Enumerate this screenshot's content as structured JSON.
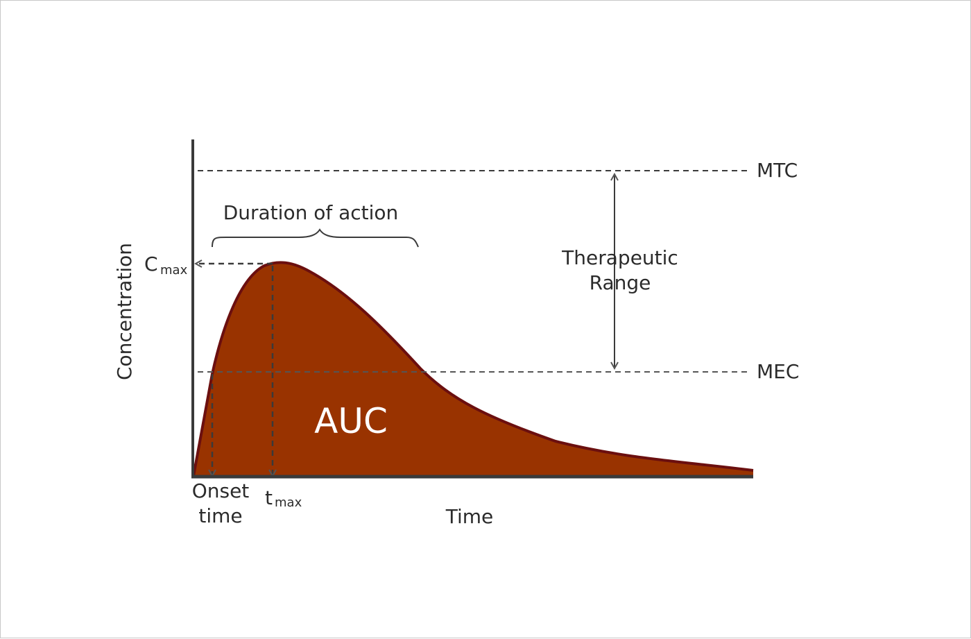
{
  "colors": {
    "curve_fill": "#993300",
    "curve_stroke": "#6b0f0f",
    "axis": "#3a3a3a",
    "dashes": "#555555",
    "text": "#2b2b2b"
  },
  "labels": {
    "y_axis": "Concentration",
    "x_axis": "Time",
    "mtc": "MTC",
    "mec": "MEC",
    "cmax_main": "C",
    "cmax_sub": "max",
    "tmax_main": "t",
    "tmax_sub": "max",
    "onset_line1": "Onset",
    "onset_line2": "time",
    "duration": "Duration of action",
    "therapeutic_line1": "Therapeutic",
    "therapeutic_line2": "Range",
    "auc": "AUC"
  }
}
